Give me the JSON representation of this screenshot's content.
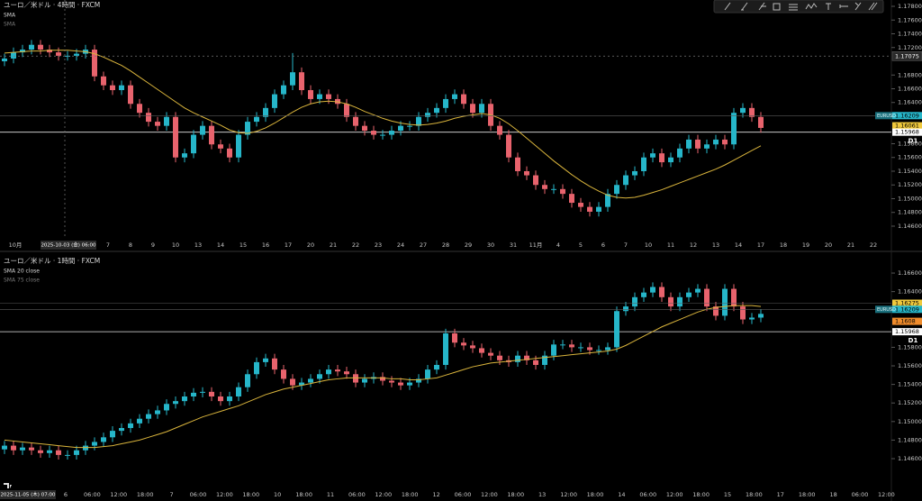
{
  "chart_data": [
    {
      "type": "candlestick",
      "title": "ユーロ／米ドル · 4時間 · FXCM",
      "series": [
        {
          "name": "SMA",
          "color": "#d9b43c",
          "values": [
            1.1712,
            1.1713,
            1.1714,
            1.1715,
            1.1715,
            1.1716,
            1.1716,
            1.1716,
            1.1715,
            1.1714,
            1.1711,
            1.1706,
            1.17,
            1.1694,
            1.1686,
            1.1677,
            1.1668,
            1.1659,
            1.165,
            1.1641,
            1.1632,
            1.1625,
            1.1619,
            1.1613,
            1.1607,
            1.16,
            1.1596,
            1.1595,
            1.1598,
            1.1603,
            1.161,
            1.1618,
            1.1626,
            1.1633,
            1.1638,
            1.1641,
            1.1642,
            1.1641,
            1.1638,
            1.1633,
            1.1627,
            1.1622,
            1.1617,
            1.1613,
            1.161,
            1.1608,
            1.1607,
            1.1608,
            1.161,
            1.1613,
            1.1617,
            1.162,
            1.1622,
            1.1624,
            1.1622,
            1.1617,
            1.1609,
            1.1599,
            1.1588,
            1.1577,
            1.1566,
            1.1555,
            1.1545,
            1.1535,
            1.1526,
            1.1518,
            1.1511,
            1.1505,
            1.1502,
            1.1501,
            1.1502,
            1.1505,
            1.1509,
            1.1513,
            1.1518,
            1.1523,
            1.1528,
            1.1533,
            1.1538,
            1.1543,
            1.1549,
            1.1556,
            1.1563,
            1.157,
            1.1577
          ]
        }
      ],
      "hidden_indicator": "SMA",
      "up_color": "#26b6c9",
      "down_color": "#e8636d",
      "open": [
        1.17,
        1.1704,
        1.1713,
        1.1717,
        1.1724,
        1.1717,
        1.1713,
        1.1708,
        1.1708,
        1.1711,
        1.1717,
        1.1678,
        1.1665,
        1.1658,
        1.1665,
        1.1638,
        1.1625,
        1.1612,
        1.1606,
        1.1619,
        1.156,
        1.1566,
        1.1593,
        1.1606,
        1.1579,
        1.1573,
        1.156,
        1.1593,
        1.1612,
        1.1619,
        1.1632,
        1.1652,
        1.1665,
        1.1684,
        1.1658,
        1.1645,
        1.1652,
        1.1645,
        1.1638,
        1.1619,
        1.1606,
        1.1599,
        1.1593,
        1.1593,
        1.1599,
        1.1606,
        1.1606,
        1.1619,
        1.1625,
        1.1632,
        1.1645,
        1.1652,
        1.1638,
        1.1625,
        1.1638,
        1.1606,
        1.1593,
        1.156,
        1.154,
        1.1534,
        1.152,
        1.1514,
        1.1514,
        1.1507,
        1.1494,
        1.1488,
        1.1481,
        1.1488,
        1.1507,
        1.152,
        1.1534,
        1.154,
        1.156,
        1.1566,
        1.1553,
        1.156,
        1.1573,
        1.1586,
        1.1573,
        1.1579,
        1.1586,
        1.1579,
        1.1625,
        1.1632,
        1.1619
      ],
      "high": [
        1.1711,
        1.172,
        1.1724,
        1.1731,
        1.1731,
        1.1724,
        1.172,
        1.1715,
        1.1718,
        1.1724,
        1.1724,
        1.1685,
        1.1672,
        1.1672,
        1.1672,
        1.1645,
        1.1632,
        1.1619,
        1.1626,
        1.1626,
        1.1573,
        1.16,
        1.1613,
        1.1613,
        1.1586,
        1.158,
        1.16,
        1.1619,
        1.1626,
        1.1639,
        1.1659,
        1.1672,
        1.1712,
        1.1691,
        1.1665,
        1.1659,
        1.1659,
        1.1652,
        1.1645,
        1.1626,
        1.1613,
        1.1606,
        1.16,
        1.1606,
        1.1613,
        1.1613,
        1.1626,
        1.1632,
        1.1639,
        1.1652,
        1.1659,
        1.1659,
        1.1645,
        1.1645,
        1.1645,
        1.1613,
        1.16,
        1.1567,
        1.1547,
        1.1541,
        1.1527,
        1.1521,
        1.1521,
        1.1514,
        1.1501,
        1.1495,
        1.1495,
        1.1514,
        1.1527,
        1.1541,
        1.1547,
        1.1567,
        1.1573,
        1.1573,
        1.1567,
        1.158,
        1.1593,
        1.1593,
        1.1586,
        1.1593,
        1.1593,
        1.1632,
        1.1639,
        1.1639,
        1.1626
      ],
      "low": [
        1.1693,
        1.1697,
        1.1706,
        1.171,
        1.171,
        1.1706,
        1.1701,
        1.1701,
        1.1701,
        1.1704,
        1.1671,
        1.1658,
        1.1651,
        1.1651,
        1.1631,
        1.1618,
        1.1605,
        1.1599,
        1.1599,
        1.1553,
        1.1553,
        1.1559,
        1.1586,
        1.1572,
        1.1566,
        1.1553,
        1.1553,
        1.1586,
        1.1605,
        1.1612,
        1.1625,
        1.1645,
        1.1658,
        1.1651,
        1.1638,
        1.1638,
        1.1638,
        1.1631,
        1.1612,
        1.1599,
        1.1592,
        1.1586,
        1.1586,
        1.1586,
        1.1592,
        1.1599,
        1.1599,
        1.1612,
        1.1618,
        1.1625,
        1.1638,
        1.1631,
        1.1618,
        1.1618,
        1.1599,
        1.1586,
        1.1553,
        1.1533,
        1.1527,
        1.1513,
        1.1507,
        1.1507,
        1.15,
        1.1487,
        1.1481,
        1.1474,
        1.1474,
        1.1481,
        1.15,
        1.1513,
        1.1527,
        1.1533,
        1.1553,
        1.1546,
        1.1546,
        1.1553,
        1.1566,
        1.1566,
        1.1566,
        1.1572,
        1.1572,
        1.1572,
        1.1618,
        1.1612,
        1.1596
      ],
      "close": [
        1.1704,
        1.1713,
        1.1717,
        1.1724,
        1.1717,
        1.1713,
        1.1708,
        1.1708,
        1.1711,
        1.1717,
        1.1678,
        1.1665,
        1.1658,
        1.1665,
        1.1638,
        1.1625,
        1.1612,
        1.1606,
        1.1619,
        1.156,
        1.1566,
        1.1593,
        1.1606,
        1.1579,
        1.1573,
        1.156,
        1.1593,
        1.1612,
        1.1619,
        1.1632,
        1.1652,
        1.1665,
        1.1684,
        1.1658,
        1.1645,
        1.1652,
        1.1645,
        1.1638,
        1.1619,
        1.1606,
        1.1599,
        1.1593,
        1.1593,
        1.1599,
        1.1606,
        1.1606,
        1.1619,
        1.1625,
        1.1632,
        1.1645,
        1.1652,
        1.1638,
        1.1625,
        1.1638,
        1.1606,
        1.1593,
        1.156,
        1.154,
        1.1534,
        1.152,
        1.1514,
        1.1514,
        1.1507,
        1.1494,
        1.1488,
        1.1481,
        1.1488,
        1.1507,
        1.152,
        1.1534,
        1.154,
        1.156,
        1.1566,
        1.1553,
        1.156,
        1.1573,
        1.1586,
        1.1573,
        1.1579,
        1.1586,
        1.1579,
        1.1625,
        1.1632,
        1.1619,
        1.1603
      ],
      "ylim": [
        1.14416,
        1.17892
      ],
      "yticks": [
        {
          "value": 1.178,
          "label": "1.17800"
        },
        {
          "value": 1.176,
          "label": "1.17600"
        },
        {
          "value": 1.174,
          "label": "1.17400"
        },
        {
          "value": 1.172,
          "label": "1.17200"
        },
        {
          "value": 1.168,
          "label": "1.16800"
        },
        {
          "value": 1.166,
          "label": "1.16600"
        },
        {
          "value": 1.164,
          "label": "1.16400"
        },
        {
          "value": 1.158,
          "label": "1.15800"
        },
        {
          "value": 1.156,
          "label": "1.15600"
        },
        {
          "value": 1.154,
          "label": "1.15400"
        },
        {
          "value": 1.152,
          "label": "1.15200"
        },
        {
          "value": 1.15,
          "label": "1.15000"
        },
        {
          "value": 1.148,
          "label": "1.14800"
        },
        {
          "value": 1.146,
          "label": "1.14600"
        }
      ],
      "x_labels": [
        "10月",
        "7",
        "8",
        "9",
        "10",
        "13",
        "14",
        "15",
        "16",
        "17",
        "20",
        "21",
        "22",
        "23",
        "24",
        "27",
        "28",
        "29",
        "30",
        "31",
        "11月",
        "4",
        "5",
        "6",
        "7",
        "10",
        "11",
        "12",
        "13",
        "14",
        "17",
        "18",
        "19",
        "20",
        "21",
        "22"
      ],
      "crosshair_time": "2025-10-03 (金)  06:00",
      "crosshair_price": 1.17075,
      "symbol": "EURUSD",
      "price_tags": [
        {
          "value": 1.16209,
          "color": "#26b6c9"
        },
        {
          "value": 1.16061,
          "color": "#f0c93c"
        },
        {
          "value": 1.15968,
          "color": "#ffffff"
        }
      ],
      "level_line": {
        "value": 1.15968,
        "label": "D1"
      }
    },
    {
      "type": "candlestick",
      "title": "ユーロ／米ドル · 1時間 · FXCM",
      "series": [
        {
          "name": "SMA 20 close",
          "color": "#d9b43c",
          "values": [
            1.148,
            1.1479,
            1.1478,
            1.1477,
            1.1476,
            1.1475,
            1.1474,
            1.1473,
            1.1472,
            1.1472,
            1.1472,
            1.1473,
            1.1474,
            1.1476,
            1.1478,
            1.148,
            1.1483,
            1.1486,
            1.1489,
            1.1493,
            1.1497,
            1.1501,
            1.1505,
            1.1508,
            1.1511,
            1.1514,
            1.1517,
            1.1521,
            1.1525,
            1.1529,
            1.1532,
            1.1535,
            1.1537,
            1.1539,
            1.1541,
            1.1543,
            1.1545,
            1.1546,
            1.1547,
            1.1547,
            1.1547,
            1.1547,
            1.1547,
            1.1546,
            1.1546,
            1.1545,
            1.1545,
            1.1546,
            1.1547,
            1.155,
            1.1553,
            1.1556,
            1.1559,
            1.1561,
            1.1563,
            1.1564,
            1.1565,
            1.1566,
            1.1567,
            1.1568,
            1.1569,
            1.157,
            1.1571,
            1.1572,
            1.1573,
            1.1574,
            1.1575,
            1.1576,
            1.1578,
            1.1582,
            1.1587,
            1.1592,
            1.1597,
            1.1602,
            1.1606,
            1.161,
            1.1614,
            1.1618,
            1.1621,
            1.1623,
            1.1624,
            1.1625,
            1.1625,
            1.1625,
            1.1624
          ]
        }
      ],
      "hidden_indicator": "SMA 75 close",
      "up_color": "#26b6c9",
      "down_color": "#e8636d",
      "open": [
        1.147,
        1.1474,
        1.1469,
        1.1472,
        1.1469,
        1.1466,
        1.1469,
        1.1464,
        1.1464,
        1.1469,
        1.1474,
        1.1478,
        1.1483,
        1.149,
        1.1493,
        1.1498,
        1.1503,
        1.1508,
        1.1512,
        1.1519,
        1.1522,
        1.1527,
        1.1531,
        1.1532,
        1.1527,
        1.1522,
        1.1527,
        1.1537,
        1.1551,
        1.1564,
        1.1568,
        1.1556,
        1.1546,
        1.1539,
        1.1542,
        1.1546,
        1.1551,
        1.1556,
        1.1554,
        1.1551,
        1.1542,
        1.1546,
        1.1548,
        1.1544,
        1.1542,
        1.1539,
        1.1542,
        1.1546,
        1.1556,
        1.1561,
        1.1595,
        1.1585,
        1.1582,
        1.1579,
        1.1574,
        1.1571,
        1.1566,
        1.1564,
        1.1571,
        1.1566,
        1.1561,
        1.1571,
        1.1583,
        1.1583,
        1.158,
        1.158,
        1.1577,
        1.1577,
        1.158,
        1.1619,
        1.1624,
        1.1634,
        1.1639,
        1.1645,
        1.1634,
        1.1624,
        1.1634,
        1.1639,
        1.1643,
        1.1624,
        1.1614,
        1.1643,
        1.1624,
        1.161,
        1.1612
      ],
      "high": [
        1.1479,
        1.1479,
        1.1477,
        1.1477,
        1.1474,
        1.1474,
        1.1474,
        1.1469,
        1.1474,
        1.1479,
        1.1483,
        1.1488,
        1.1495,
        1.1498,
        1.1503,
        1.1508,
        1.1513,
        1.1517,
        1.1524,
        1.1527,
        1.1532,
        1.1536,
        1.1537,
        1.1537,
        1.1532,
        1.1532,
        1.1542,
        1.1556,
        1.1569,
        1.1573,
        1.1573,
        1.1561,
        1.1551,
        1.1547,
        1.1551,
        1.1556,
        1.1561,
        1.1561,
        1.1559,
        1.1556,
        1.1551,
        1.1553,
        1.1553,
        1.1549,
        1.1547,
        1.1547,
        1.1551,
        1.1561,
        1.1566,
        1.16,
        1.16,
        1.159,
        1.1587,
        1.1584,
        1.1579,
        1.1576,
        1.1571,
        1.1576,
        1.1576,
        1.1571,
        1.1576,
        1.1588,
        1.1588,
        1.1588,
        1.1585,
        1.1585,
        1.1582,
        1.1585,
        1.1624,
        1.1629,
        1.1639,
        1.1644,
        1.165,
        1.165,
        1.1639,
        1.1639,
        1.1644,
        1.1648,
        1.1648,
        1.1629,
        1.1648,
        1.1648,
        1.1629,
        1.1617,
        1.1621
      ],
      "low": [
        1.1465,
        1.1464,
        1.1464,
        1.1464,
        1.1461,
        1.1461,
        1.1459,
        1.1459,
        1.1459,
        1.1464,
        1.1469,
        1.1473,
        1.1478,
        1.1485,
        1.1488,
        1.1493,
        1.1498,
        1.1503,
        1.1507,
        1.1514,
        1.1517,
        1.1522,
        1.1526,
        1.1522,
        1.1517,
        1.1517,
        1.1522,
        1.1532,
        1.1546,
        1.1559,
        1.1551,
        1.1541,
        1.1534,
        1.1534,
        1.1537,
        1.1541,
        1.1546,
        1.1549,
        1.1546,
        1.1537,
        1.1537,
        1.1541,
        1.1539,
        1.1537,
        1.1534,
        1.1534,
        1.1537,
        1.1541,
        1.1551,
        1.1556,
        1.158,
        1.1577,
        1.1574,
        1.1569,
        1.1566,
        1.1561,
        1.1559,
        1.1559,
        1.1561,
        1.1556,
        1.1556,
        1.1566,
        1.1578,
        1.1575,
        1.1575,
        1.1572,
        1.1572,
        1.1572,
        1.1575,
        1.1614,
        1.1619,
        1.1629,
        1.1634,
        1.1629,
        1.1619,
        1.1619,
        1.1629,
        1.1634,
        1.1619,
        1.1609,
        1.1609,
        1.1619,
        1.1605,
        1.1605,
        1.1607
      ],
      "close": [
        1.1474,
        1.1469,
        1.1472,
        1.1469,
        1.1466,
        1.1469,
        1.1464,
        1.1464,
        1.1469,
        1.1474,
        1.1478,
        1.1483,
        1.149,
        1.1493,
        1.1498,
        1.1503,
        1.1508,
        1.1512,
        1.1519,
        1.1522,
        1.1527,
        1.1531,
        1.1532,
        1.1527,
        1.1522,
        1.1527,
        1.1537,
        1.1551,
        1.1564,
        1.1568,
        1.1556,
        1.1546,
        1.1539,
        1.1542,
        1.1546,
        1.1551,
        1.1556,
        1.1554,
        1.1551,
        1.1542,
        1.1546,
        1.1548,
        1.1544,
        1.1542,
        1.1539,
        1.1542,
        1.1546,
        1.1556,
        1.1561,
        1.1595,
        1.1585,
        1.1582,
        1.1579,
        1.1574,
        1.1571,
        1.1566,
        1.1564,
        1.1571,
        1.1566,
        1.1561,
        1.1571,
        1.1583,
        1.1583,
        1.158,
        1.158,
        1.1577,
        1.1577,
        1.158,
        1.1619,
        1.1624,
        1.1634,
        1.1639,
        1.1645,
        1.1634,
        1.1624,
        1.1634,
        1.1639,
        1.1643,
        1.1624,
        1.1614,
        1.1643,
        1.1624,
        1.161,
        1.1612,
        1.1616
      ],
      "ylim": [
        1.14299,
        1.16746
      ],
      "yticks": [
        {
          "value": 1.166,
          "label": "1.16600"
        },
        {
          "value": 1.164,
          "label": "1.16400"
        },
        {
          "value": 1.158,
          "label": "1.15800"
        },
        {
          "value": 1.156,
          "label": "1.15600"
        },
        {
          "value": 1.154,
          "label": "1.15400"
        },
        {
          "value": 1.152,
          "label": "1.15200"
        },
        {
          "value": 1.15,
          "label": "1.15000"
        },
        {
          "value": 1.148,
          "label": "1.14800"
        },
        {
          "value": 1.146,
          "label": "1.14600"
        }
      ],
      "x_labels": [
        "6",
        "06:00",
        "12:00",
        "18:00",
        "7",
        "06:00",
        "12:00",
        "18:00",
        "10",
        "18:00",
        "11",
        "06:00",
        "12:00",
        "18:00",
        "12",
        "06:00",
        "12:00",
        "18:00",
        "13",
        "12:00",
        "18:00",
        "14",
        "06:00",
        "12:00",
        "18:00",
        "15",
        "18:00",
        "17",
        "18:00",
        "18",
        "06:00",
        "12:00"
      ],
      "crosshair_time": "2025-11-05 (木)  07:00",
      "symbol": "EURUSD",
      "price_tags": [
        {
          "value": 1.16275,
          "color": "#f0c93c"
        },
        {
          "value": 1.16209,
          "color": "#26b6c9"
        },
        {
          "value": 1.1608,
          "color": "#f08c2c"
        },
        {
          "value": 1.15968,
          "color": "#ffffff"
        }
      ],
      "level_line": {
        "value": 1.15968,
        "label": "D1"
      }
    }
  ]
}
